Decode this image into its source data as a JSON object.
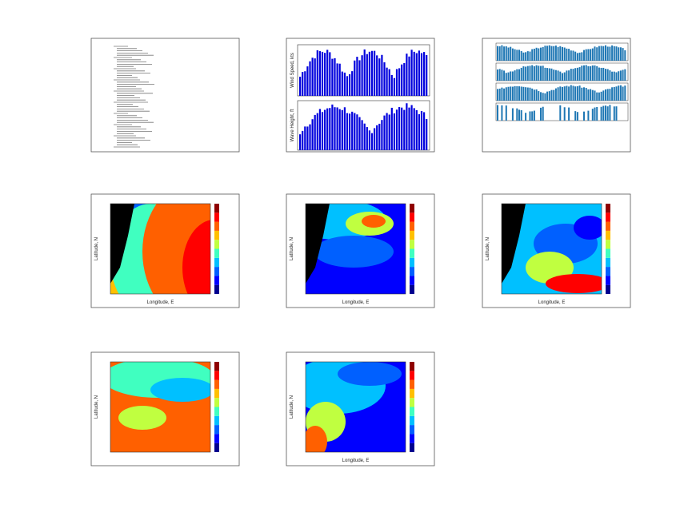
{
  "bar_figure": {
    "ylabels": [
      "Wind Speed, kts",
      "Wave Height, ft"
    ]
  },
  "maps": [
    {
      "ylabel": "Latitude, N",
      "xlabel": "Longitude, E"
    },
    {
      "ylabel": "Latitude, N",
      "xlabel": "Longitude, E"
    },
    {
      "ylabel": "Latitude, N",
      "xlabel": "Longitude, E"
    },
    {
      "ylabel": "Latitude, N"
    },
    {
      "ylabel": "Latitude, N",
      "xlabel": "Longitude, E"
    }
  ]
}
